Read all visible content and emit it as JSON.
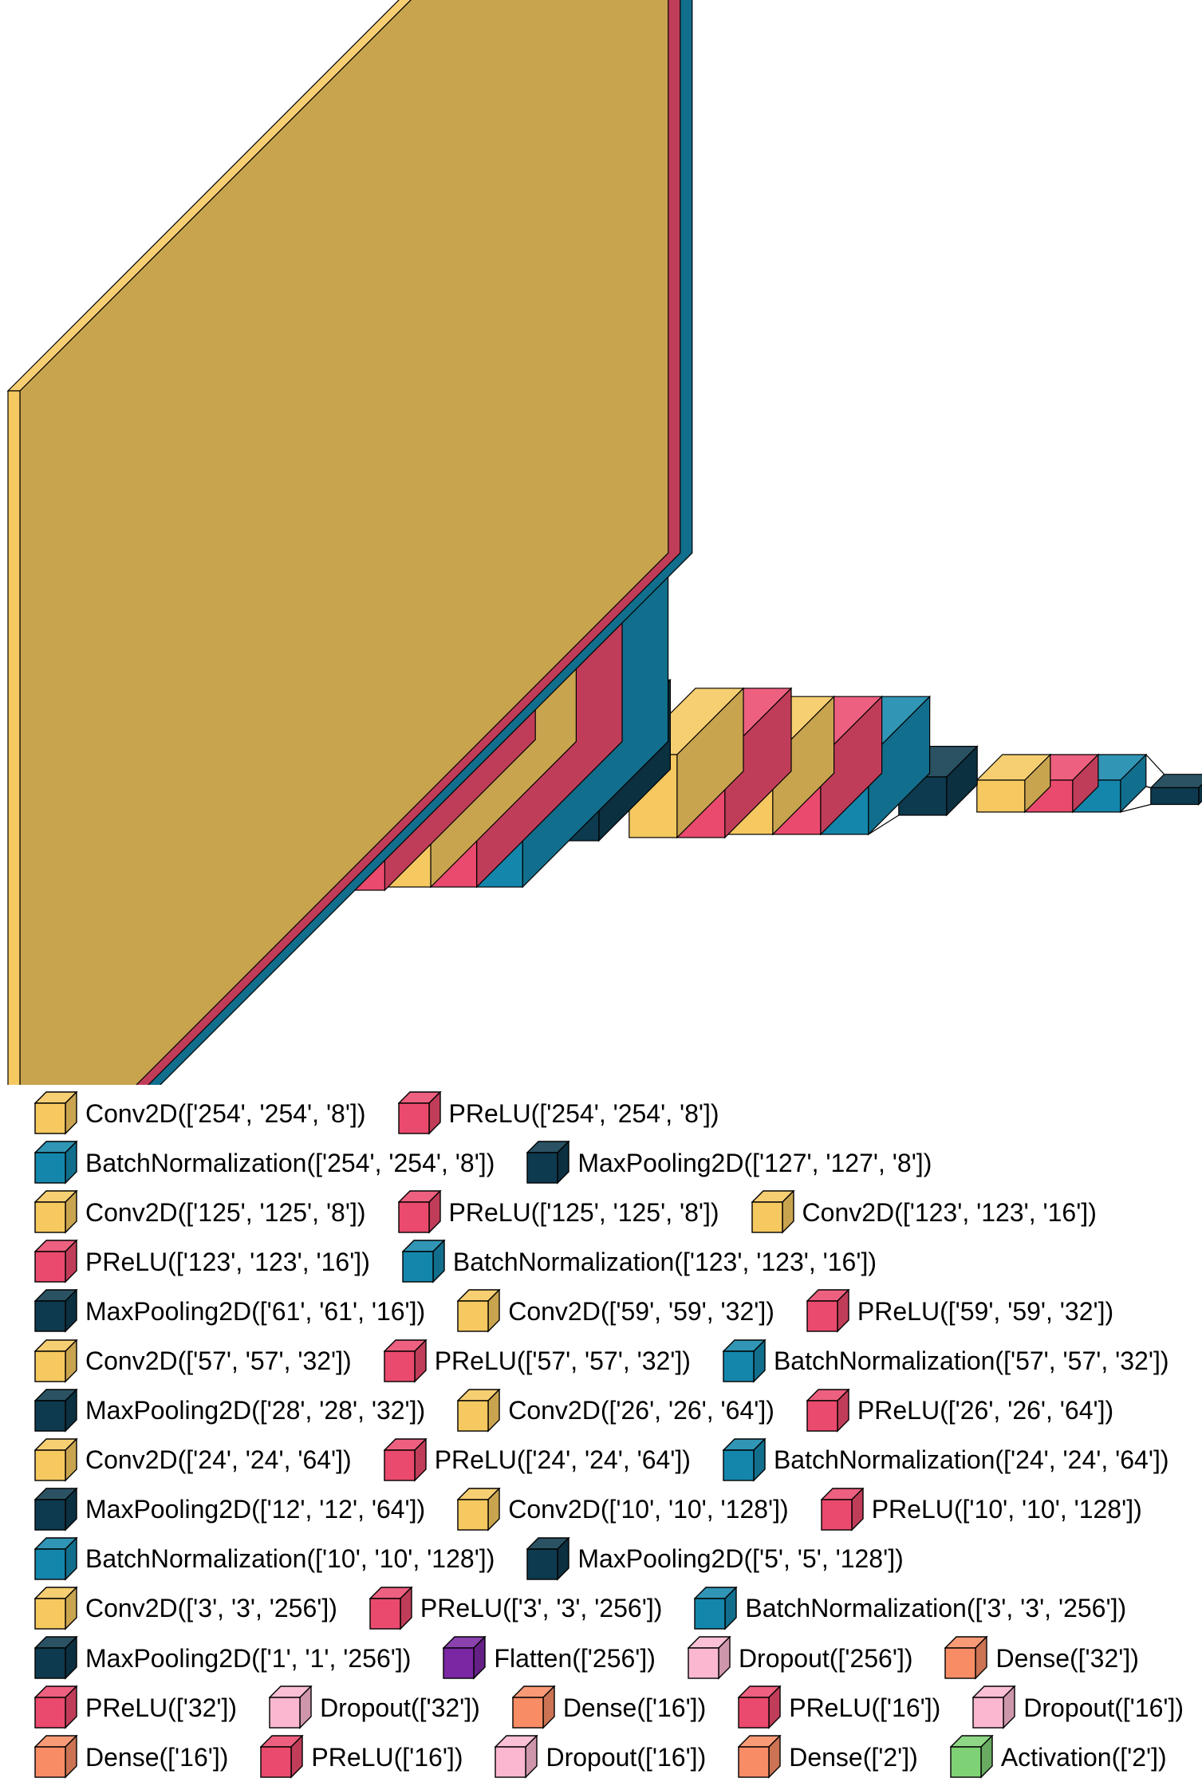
{
  "colors": {
    "Conv2D": "#f5c860",
    "PReLU": "#ea4a6d",
    "BatchNormalization": "#1586ab",
    "MaxPooling2D": "#0d3a4e",
    "Flatten": "#7b27a3",
    "Dropout": "#fbb7d0",
    "Dense": "#f88c65",
    "Activation": "#7fd176"
  },
  "layers": [
    {
      "type": "Conv2D",
      "shape": [
        "254",
        "254",
        "8"
      ]
    },
    {
      "type": "PReLU",
      "shape": [
        "254",
        "254",
        "8"
      ]
    },
    {
      "type": "BatchNormalization",
      "shape": [
        "254",
        "254",
        "8"
      ]
    },
    {
      "type": "MaxPooling2D",
      "shape": [
        "127",
        "127",
        "8"
      ]
    },
    {
      "type": "Conv2D",
      "shape": [
        "125",
        "125",
        "8"
      ]
    },
    {
      "type": "PReLU",
      "shape": [
        "125",
        "125",
        "8"
      ]
    },
    {
      "type": "Conv2D",
      "shape": [
        "123",
        "123",
        "16"
      ]
    },
    {
      "type": "PReLU",
      "shape": [
        "123",
        "123",
        "16"
      ]
    },
    {
      "type": "BatchNormalization",
      "shape": [
        "123",
        "123",
        "16"
      ]
    },
    {
      "type": "MaxPooling2D",
      "shape": [
        "61",
        "61",
        "16"
      ]
    },
    {
      "type": "Conv2D",
      "shape": [
        "59",
        "59",
        "32"
      ]
    },
    {
      "type": "PReLU",
      "shape": [
        "59",
        "59",
        "32"
      ]
    },
    {
      "type": "Conv2D",
      "shape": [
        "57",
        "57",
        "32"
      ]
    },
    {
      "type": "PReLU",
      "shape": [
        "57",
        "57",
        "32"
      ]
    },
    {
      "type": "BatchNormalization",
      "shape": [
        "57",
        "57",
        "32"
      ]
    },
    {
      "type": "MaxPooling2D",
      "shape": [
        "28",
        "28",
        "32"
      ]
    },
    {
      "type": "Conv2D",
      "shape": [
        "26",
        "26",
        "64"
      ]
    },
    {
      "type": "PReLU",
      "shape": [
        "26",
        "26",
        "64"
      ]
    },
    {
      "type": "Conv2D",
      "shape": [
        "24",
        "24",
        "64"
      ]
    },
    {
      "type": "PReLU",
      "shape": [
        "24",
        "24",
        "64"
      ]
    },
    {
      "type": "BatchNormalization",
      "shape": [
        "24",
        "24",
        "64"
      ]
    },
    {
      "type": "MaxPooling2D",
      "shape": [
        "12",
        "12",
        "64"
      ]
    },
    {
      "type": "Conv2D",
      "shape": [
        "10",
        "10",
        "128"
      ]
    },
    {
      "type": "PReLU",
      "shape": [
        "10",
        "10",
        "128"
      ]
    },
    {
      "type": "BatchNormalization",
      "shape": [
        "10",
        "10",
        "128"
      ]
    },
    {
      "type": "MaxPooling2D",
      "shape": [
        "5",
        "5",
        "128"
      ]
    },
    {
      "type": "Conv2D",
      "shape": [
        "3",
        "3",
        "256"
      ]
    },
    {
      "type": "PReLU",
      "shape": [
        "3",
        "3",
        "256"
      ]
    },
    {
      "type": "BatchNormalization",
      "shape": [
        "3",
        "3",
        "256"
      ]
    },
    {
      "type": "MaxPooling2D",
      "shape": [
        "1",
        "1",
        "256"
      ]
    },
    {
      "type": "Flatten",
      "shape": [
        "256"
      ]
    },
    {
      "type": "Dropout",
      "shape": [
        "256"
      ]
    },
    {
      "type": "Dense",
      "shape": [
        "32"
      ]
    },
    {
      "type": "PReLU",
      "shape": [
        "32"
      ]
    },
    {
      "type": "Dropout",
      "shape": [
        "32"
      ]
    },
    {
      "type": "Dense",
      "shape": [
        "16"
      ]
    },
    {
      "type": "PReLU",
      "shape": [
        "16"
      ]
    },
    {
      "type": "Dropout",
      "shape": [
        "16"
      ]
    },
    {
      "type": "Dense",
      "shape": [
        "16"
      ]
    },
    {
      "type": "PReLU",
      "shape": [
        "16"
      ]
    },
    {
      "type": "Dropout",
      "shape": [
        "16"
      ]
    },
    {
      "type": "Dense",
      "shape": [
        "2"
      ]
    },
    {
      "type": "Activation",
      "shape": [
        "2"
      ]
    }
  ],
  "legend_rows": [
    [
      {
        "label": "Conv2D(['254', '254', '8'])",
        "type": "Conv2D"
      },
      {
        "label": "PReLU(['254', '254', '8'])",
        "type": "PReLU"
      }
    ],
    [
      {
        "label": "BatchNormalization(['254', '254', '8'])",
        "type": "BatchNormalization"
      },
      {
        "label": "MaxPooling2D(['127', '127', '8'])",
        "type": "MaxPooling2D"
      }
    ],
    [
      {
        "label": "Conv2D(['125', '125', '8'])",
        "type": "Conv2D"
      },
      {
        "label": "PReLU(['125', '125', '8'])",
        "type": "PReLU"
      },
      {
        "label": "Conv2D(['123', '123', '16'])",
        "type": "Conv2D"
      }
    ],
    [
      {
        "label": "PReLU(['123', '123', '16'])",
        "type": "PReLU"
      },
      {
        "label": "BatchNormalization(['123', '123', '16'])",
        "type": "BatchNormalization"
      }
    ],
    [
      {
        "label": "MaxPooling2D(['61', '61', '16'])",
        "type": "MaxPooling2D"
      },
      {
        "label": "Conv2D(['59', '59', '32'])",
        "type": "Conv2D"
      },
      {
        "label": "PReLU(['59', '59', '32'])",
        "type": "PReLU"
      }
    ],
    [
      {
        "label": "Conv2D(['57', '57', '32'])",
        "type": "Conv2D"
      },
      {
        "label": "PReLU(['57', '57', '32'])",
        "type": "PReLU"
      },
      {
        "label": "BatchNormalization(['57', '57', '32'])",
        "type": "BatchNormalization"
      }
    ],
    [
      {
        "label": "MaxPooling2D(['28', '28', '32'])",
        "type": "MaxPooling2D"
      },
      {
        "label": "Conv2D(['26', '26', '64'])",
        "type": "Conv2D"
      },
      {
        "label": "PReLU(['26', '26', '64'])",
        "type": "PReLU"
      }
    ],
    [
      {
        "label": "Conv2D(['24', '24', '64'])",
        "type": "Conv2D"
      },
      {
        "label": "PReLU(['24', '24', '64'])",
        "type": "PReLU"
      },
      {
        "label": "BatchNormalization(['24', '24', '64'])",
        "type": "BatchNormalization"
      }
    ],
    [
      {
        "label": "MaxPooling2D(['12', '12', '64'])",
        "type": "MaxPooling2D"
      },
      {
        "label": "Conv2D(['10', '10', '128'])",
        "type": "Conv2D"
      },
      {
        "label": "PReLU(['10', '10', '128'])",
        "type": "PReLU"
      }
    ],
    [
      {
        "label": "BatchNormalization(['10', '10', '128'])",
        "type": "BatchNormalization"
      },
      {
        "label": "MaxPooling2D(['5', '5', '128'])",
        "type": "MaxPooling2D"
      }
    ],
    [
      {
        "label": "Conv2D(['3', '3', '256'])",
        "type": "Conv2D"
      },
      {
        "label": "PReLU(['3', '3', '256'])",
        "type": "PReLU"
      },
      {
        "label": "BatchNormalization(['3', '3', '256'])",
        "type": "BatchNormalization"
      }
    ],
    [
      {
        "label": "MaxPooling2D(['1', '1', '256'])",
        "type": "MaxPooling2D"
      },
      {
        "label": "Flatten(['256'])",
        "type": "Flatten"
      },
      {
        "label": "Dropout(['256'])",
        "type": "Dropout"
      },
      {
        "label": "Dense(['32'])",
        "type": "Dense"
      }
    ],
    [
      {
        "label": "PReLU(['32'])",
        "type": "PReLU"
      },
      {
        "label": "Dropout(['32'])",
        "type": "Dropout"
      },
      {
        "label": "Dense(['16'])",
        "type": "Dense"
      },
      {
        "label": "PReLU(['16'])",
        "type": "PReLU"
      },
      {
        "label": "Dropout(['16'])",
        "type": "Dropout"
      }
    ],
    [
      {
        "label": "Dense(['16'])",
        "type": "Dense"
      },
      {
        "label": "PReLU(['16'])",
        "type": "PReLU"
      },
      {
        "label": "Dropout(['16'])",
        "type": "Dropout"
      },
      {
        "label": "Dense(['2'])",
        "type": "Dense"
      },
      {
        "label": "Activation(['2'])",
        "type": "Activation"
      }
    ]
  ]
}
